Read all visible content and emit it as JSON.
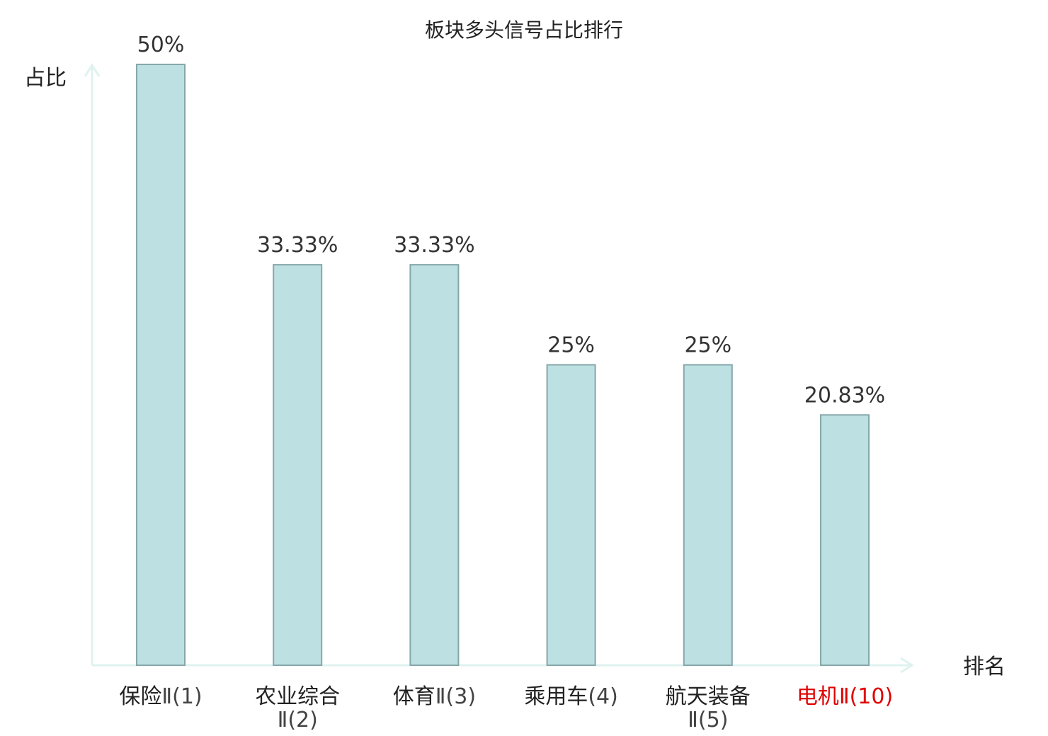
{
  "chart_data": {
    "type": "bar",
    "title": "板块多头信号占比排行",
    "xlabel": "排名",
    "ylabel": "占比",
    "value_suffix": "%",
    "ylim": [
      0,
      50
    ],
    "grid": false,
    "legend": "none",
    "colors": {
      "bar_fill": "#bde0e3",
      "bar_stroke": "#86a7aa",
      "axis": "#dff2ef",
      "highlight": "#e00000"
    },
    "bars": [
      {
        "name_lines": [
          "保险"
        ],
        "rank_label": "Ⅱ(1)",
        "value": 50,
        "value_label": "50%",
        "highlight": false
      },
      {
        "name_lines": [
          "农业综合"
        ],
        "rank_label": "Ⅱ(2)",
        "value": 33.33,
        "value_label": "33.33%",
        "highlight": false
      },
      {
        "name_lines": [
          "体育"
        ],
        "rank_label": "Ⅱ(3)",
        "value": 33.33,
        "value_label": "33.33%",
        "highlight": false
      },
      {
        "name_lines": [
          "乘用车"
        ],
        "rank_label": "(4)",
        "value": 25,
        "value_label": "25%",
        "highlight": false
      },
      {
        "name_lines": [
          "航天装备"
        ],
        "rank_label": "Ⅱ(5)",
        "value": 25,
        "value_label": "25%",
        "highlight": false
      },
      {
        "name_lines": [
          "电机"
        ],
        "rank_label": "Ⅱ(10)",
        "value": 20.83,
        "value_label": "20.83%",
        "highlight": true
      }
    ]
  }
}
